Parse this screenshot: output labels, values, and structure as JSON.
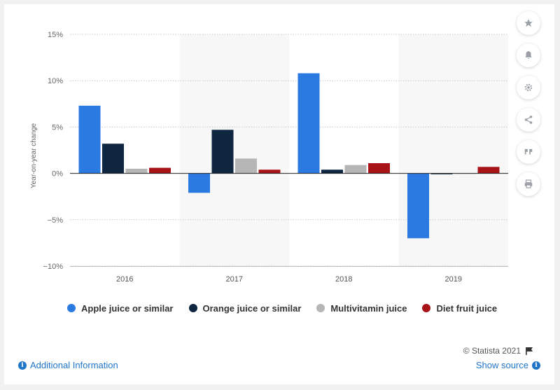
{
  "chart_data": {
    "type": "bar",
    "categories": [
      "2016",
      "2017",
      "2018",
      "2019"
    ],
    "series": [
      {
        "name": "Apple juice or similar",
        "color": "#2a7ae2",
        "values": [
          7.3,
          -2.1,
          10.8,
          -7.0
        ]
      },
      {
        "name": "Orange juice or similar",
        "color": "#0f2640",
        "values": [
          3.2,
          4.7,
          0.4,
          -0.1
        ]
      },
      {
        "name": "Multivitamin juice",
        "color": "#b6b6b6",
        "values": [
          0.5,
          1.6,
          0.9,
          0.0
        ]
      },
      {
        "name": "Diet fruit juice",
        "color": "#a81318",
        "values": [
          0.6,
          0.4,
          1.1,
          0.7
        ]
      }
    ],
    "ylabel": "Year-on-year change",
    "ylim": [
      -10,
      15
    ],
    "yticks": [
      15,
      10,
      5,
      0,
      -5,
      -10
    ],
    "ytick_labels": [
      "15%",
      "10%",
      "5%",
      "0%",
      "−5%",
      "−10%"
    ],
    "grid": true,
    "legend_position": "bottom"
  },
  "toolbar": {
    "icons": [
      "star-icon",
      "bell-icon",
      "gear-icon",
      "share-icon",
      "quote-icon",
      "print-icon"
    ]
  },
  "footer": {
    "credit": "© Statista 2021",
    "additional_info": "Additional Information",
    "show_source": "Show source"
  }
}
